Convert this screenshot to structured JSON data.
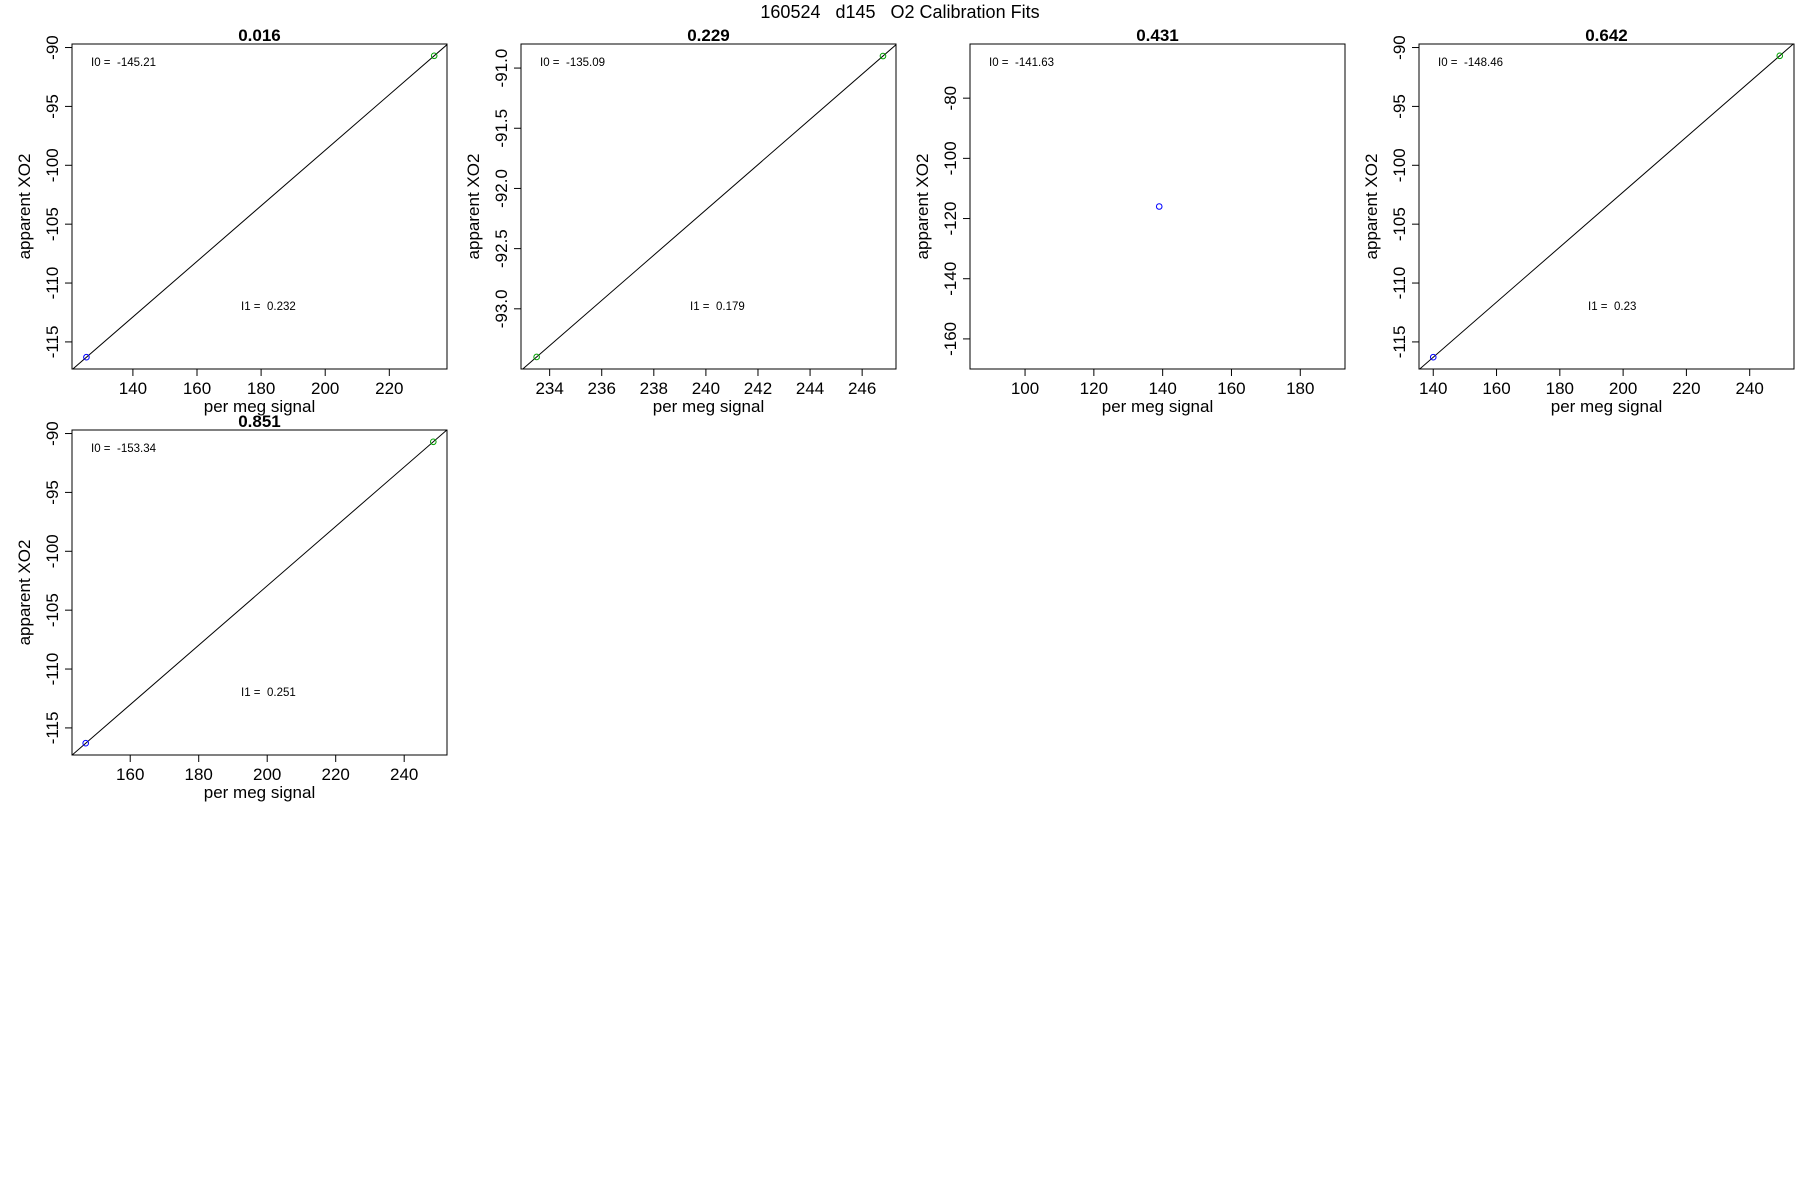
{
  "figure": {
    "title": "160524   d145   O2 Calibration Fits",
    "colors": {
      "low_point": "#0000ff",
      "high_point": "#00a000",
      "fit_line": "#000000"
    }
  },
  "chart_data": [
    {
      "type": "scatter",
      "title": "0.016",
      "xlabel": "per meg signal",
      "ylabel": "apparent XO2",
      "xlim": [
        121,
        238
      ],
      "ylim": [
        -117.3,
        -89.7
      ],
      "xticks": [
        140,
        160,
        180,
        200,
        220
      ],
      "yticks": [
        -90,
        -95,
        -100,
        -105,
        -110,
        -115
      ],
      "points": [
        {
          "x": 125.5,
          "y": -116.3,
          "color": "#0000ff"
        },
        {
          "x": 234,
          "y": -90.7,
          "color": "#00a000"
        }
      ],
      "fit_line": true,
      "annotations": {
        "i0_label": "I0 =",
        "i0_value": "-145.21",
        "i1_label": "I1 =",
        "i1_value": "0.232"
      }
    },
    {
      "type": "scatter",
      "title": "0.229",
      "xlabel": "per meg signal",
      "ylabel": "apparent XO2",
      "xlim": [
        232.9,
        247.3
      ],
      "ylim": [
        -93.5,
        -90.8
      ],
      "xticks": [
        234,
        236,
        238,
        240,
        242,
        244,
        246
      ],
      "yticks": [
        -91.0,
        -91.5,
        -92.0,
        -92.5,
        -93.0
      ],
      "ytick_labels": [
        "-91.0",
        "-91.5",
        "-92.0",
        "-92.5",
        "-93.0"
      ],
      "points": [
        {
          "x": 233.5,
          "y": -93.4,
          "color": "#00a000"
        },
        {
          "x": 246.8,
          "y": -90.9,
          "color": "#00a000"
        }
      ],
      "fit_line": true,
      "annotations": {
        "i0_label": "I0 =",
        "i0_value": "-135.09",
        "i1_label": "I1 =",
        "i1_value": "0.179"
      }
    },
    {
      "type": "scatter",
      "title": "0.431",
      "xlabel": "per meg signal",
      "ylabel": "apparent XO2",
      "xlim": [
        84,
        193
      ],
      "ylim": [
        -170,
        -62
      ],
      "xticks": [
        100,
        120,
        140,
        160,
        180
      ],
      "yticks": [
        -80,
        -100,
        -120,
        -140,
        -160
      ],
      "points": [
        {
          "x": 139,
          "y": -116,
          "color": "#0000ff"
        }
      ],
      "fit_line": false,
      "annotations": {
        "i0_label": "I0 =",
        "i0_value": "-141.63"
      }
    },
    {
      "type": "scatter",
      "title": "0.642",
      "xlabel": "per meg signal",
      "ylabel": "apparent XO2",
      "xlim": [
        135.5,
        254
      ],
      "ylim": [
        -117.3,
        -89.7
      ],
      "xticks": [
        140,
        160,
        180,
        200,
        220,
        240
      ],
      "yticks": [
        -90,
        -95,
        -100,
        -105,
        -110,
        -115
      ],
      "points": [
        {
          "x": 140,
          "y": -116.3,
          "color": "#0000ff"
        },
        {
          "x": 249.5,
          "y": -90.7,
          "color": "#00a000"
        }
      ],
      "fit_line": true,
      "annotations": {
        "i0_label": "I0 =",
        "i0_value": "-148.46",
        "i1_label": "I1 =",
        "i1_value": "0.23"
      }
    },
    {
      "type": "scatter",
      "title": "0.851",
      "xlabel": "per meg signal",
      "ylabel": "apparent XO2",
      "xlim": [
        143,
        252.5
      ],
      "ylim": [
        -117.3,
        -89.7
      ],
      "xticks": [
        160,
        180,
        200,
        220,
        240
      ],
      "yticks": [
        -90,
        -95,
        -100,
        -105,
        -110,
        -115
      ],
      "points": [
        {
          "x": 147,
          "y": -116.3,
          "color": "#0000ff"
        },
        {
          "x": 248.5,
          "y": -90.7,
          "color": "#00a000"
        }
      ],
      "fit_line": true,
      "annotations": {
        "i0_label": "I0 =",
        "i0_value": "-153.34",
        "i1_label": "I1 =",
        "i1_value": "0.251"
      }
    }
  ]
}
